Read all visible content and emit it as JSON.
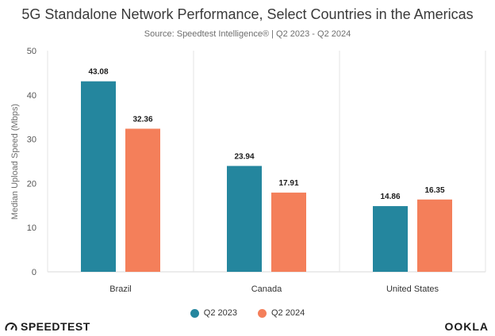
{
  "header": {
    "title": "5G Standalone Network Performance, Select Countries in the Americas",
    "subtitle": "Source: Speedtest Intelligence® | Q2 2023 - Q2 2024"
  },
  "brand": {
    "left_logo": "SPEEDTEST",
    "right_logo": "OOKLA"
  },
  "colors": {
    "q2_2023": "#24869e",
    "q2_2024": "#f47f5a"
  },
  "chart_data": {
    "type": "bar",
    "title": "5G Standalone Network Performance, Select Countries in the Americas",
    "subtitle": "Source: Speedtest Intelligence® | Q2 2023 - Q2 2024",
    "xlabel": "",
    "ylabel": "Median Upload Speed (Mbps)",
    "ylim": [
      0,
      50
    ],
    "yticks": [
      0,
      10,
      20,
      30,
      40,
      50
    ],
    "categories": [
      "Brazil",
      "Canada",
      "United States"
    ],
    "series": [
      {
        "name": "Q2 2023",
        "values": [
          43.08,
          23.94,
          14.86
        ],
        "labels": [
          "43.08",
          "23.94",
          "14.86"
        ]
      },
      {
        "name": "Q2 2024",
        "values": [
          32.36,
          17.91,
          16.35
        ],
        "labels": [
          "32.36",
          "17.91",
          "16.35"
        ]
      }
    ],
    "grid": "vertical-separators",
    "legend": "bottom-center"
  }
}
